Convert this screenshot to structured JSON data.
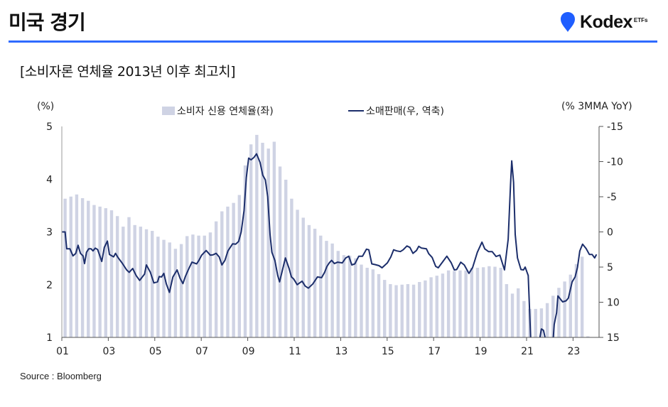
{
  "header": {
    "title": "미국 경기",
    "logo_text": "Kodex",
    "logo_sup": "ETFs",
    "accent": "#2f6bff"
  },
  "subtitle": "[소비자론 연체율 2013년 이후 최고치]",
  "footer": {
    "source": "Source : Bloomberg"
  },
  "chart_data": {
    "type": "bar+line",
    "title": "[소비자론 연체율 2013년 이후 최고치]",
    "left_axis": {
      "unit": "(%)",
      "range": [
        1,
        5
      ],
      "ticks": [
        "1",
        "2",
        "3",
        "4",
        "5"
      ]
    },
    "right_axis": {
      "unit": "(% 3MMA YoY)",
      "range": [
        -15,
        15
      ],
      "inverted": true,
      "ticks": [
        "-15",
        "-10",
        "-5",
        "0",
        "5",
        "10",
        "15"
      ]
    },
    "x_axis": {
      "range": [
        2001,
        2024.12
      ],
      "ticks": [
        "01",
        "03",
        "05",
        "07",
        "09",
        "11",
        "13",
        "15",
        "17",
        "19",
        "21",
        "23"
      ],
      "tick_years": [
        2001,
        2003,
        2005,
        2007,
        2009,
        2011,
        2013,
        2015,
        2017,
        2019,
        2021,
        2023
      ]
    },
    "legend": [
      {
        "label": "소비자 신용 연체율(좌)",
        "color": "#cfd3e4"
      },
      {
        "label": "소매판매(우, 역축)",
        "color": "#1c2e6b"
      }
    ],
    "bars": {
      "name": "소비자 신용 연체율(좌)",
      "start_year": 2001.14,
      "step_years": 0.25,
      "values": [
        3.63,
        3.67,
        3.71,
        3.64,
        3.59,
        3.51,
        3.48,
        3.45,
        3.41,
        3.3,
        3.1,
        3.28,
        3.13,
        3.1,
        3.05,
        3.02,
        2.91,
        2.85,
        2.8,
        2.68,
        2.77,
        2.92,
        2.95,
        2.93,
        2.93,
        2.99,
        3.2,
        3.39,
        3.48,
        3.55,
        3.7,
        4.26,
        4.66,
        4.84,
        4.69,
        4.58,
        4.71,
        4.24,
        3.99,
        3.63,
        3.42,
        3.27,
        3.13,
        3.06,
        2.93,
        2.83,
        2.78,
        2.64,
        2.56,
        2.55,
        2.5,
        2.38,
        2.32,
        2.29,
        2.2,
        2.09,
        2.01,
        1.99,
        2.0,
        2.01,
        2.0,
        2.05,
        2.08,
        2.14,
        2.17,
        2.21,
        2.27,
        2.26,
        2.27,
        2.27,
        2.32,
        2.32,
        2.33,
        2.35,
        2.34,
        2.32,
        2.01,
        1.83,
        1.93,
        1.69,
        1.54,
        1.54,
        1.55,
        1.65,
        1.79,
        1.94,
        2.06,
        2.19,
        2.39,
        2.53,
        1.02
      ]
    },
    "line": {
      "name": "소매판매(우, 역축)",
      "points": [
        [
          2001.0,
          0
        ],
        [
          2001.14,
          0
        ],
        [
          2001.21,
          2.4
        ],
        [
          2001.35,
          2.4
        ],
        [
          2001.48,
          3.4
        ],
        [
          2001.6,
          3.05
        ],
        [
          2001.7,
          1.9
        ],
        [
          2001.8,
          3.05
        ],
        [
          2001.91,
          3.4
        ],
        [
          2001.98,
          4.5
        ],
        [
          2002.06,
          2.9
        ],
        [
          2002.16,
          2.4
        ],
        [
          2002.26,
          2.4
        ],
        [
          2002.34,
          2.7
        ],
        [
          2002.44,
          2.3
        ],
        [
          2002.54,
          2.5
        ],
        [
          2002.72,
          4.2
        ],
        [
          2002.83,
          2.2
        ],
        [
          2002.96,
          1.3
        ],
        [
          2003.05,
          3.2
        ],
        [
          2003.23,
          3.55
        ],
        [
          2003.31,
          3.05
        ],
        [
          2003.42,
          3.65
        ],
        [
          2003.59,
          4.4
        ],
        [
          2003.79,
          5.4
        ],
        [
          2003.9,
          5.75
        ],
        [
          2004.05,
          5.2
        ],
        [
          2004.2,
          6.2
        ],
        [
          2004.35,
          6.9
        ],
        [
          2004.56,
          6.0
        ],
        [
          2004.64,
          4.7
        ],
        [
          2004.81,
          5.75
        ],
        [
          2004.96,
          7.25
        ],
        [
          2005.12,
          7.1
        ],
        [
          2005.19,
          6.35
        ],
        [
          2005.29,
          6.4
        ],
        [
          2005.39,
          5.9
        ],
        [
          2005.5,
          7.4
        ],
        [
          2005.63,
          8.6
        ],
        [
          2005.78,
          6.4
        ],
        [
          2005.96,
          5.4
        ],
        [
          2006.09,
          6.6
        ],
        [
          2006.21,
          7.35
        ],
        [
          2006.31,
          6.4
        ],
        [
          2006.44,
          5.4
        ],
        [
          2006.6,
          4.3
        ],
        [
          2006.8,
          4.55
        ],
        [
          2006.9,
          4.05
        ],
        [
          2007.02,
          3.3
        ],
        [
          2007.21,
          2.65
        ],
        [
          2007.39,
          3.3
        ],
        [
          2007.51,
          3.25
        ],
        [
          2007.64,
          3.05
        ],
        [
          2007.77,
          3.55
        ],
        [
          2007.89,
          4.7
        ],
        [
          2008.02,
          4.05
        ],
        [
          2008.15,
          2.7
        ],
        [
          2008.35,
          1.7
        ],
        [
          2008.48,
          1.75
        ],
        [
          2008.61,
          1.35
        ],
        [
          2008.72,
          0
        ],
        [
          2008.84,
          -3.0
        ],
        [
          2008.94,
          -7.7
        ],
        [
          2009.04,
          -10.5
        ],
        [
          2009.14,
          -10.25
        ],
        [
          2009.27,
          -10.6
        ],
        [
          2009.38,
          -11.1
        ],
        [
          2009.53,
          -9.9
        ],
        [
          2009.65,
          -8.05
        ],
        [
          2009.76,
          -7.4
        ],
        [
          2009.86,
          -5.0
        ],
        [
          2009.96,
          0.35
        ],
        [
          2010.04,
          2.9
        ],
        [
          2010.17,
          4.05
        ],
        [
          2010.29,
          6.2
        ],
        [
          2010.37,
          7.1
        ],
        [
          2010.47,
          5.75
        ],
        [
          2010.62,
          3.7
        ],
        [
          2010.78,
          5.2
        ],
        [
          2010.88,
          6.4
        ],
        [
          2010.98,
          6.7
        ],
        [
          2011.13,
          7.5
        ],
        [
          2011.34,
          7.0
        ],
        [
          2011.47,
          7.7
        ],
        [
          2011.61,
          8.0
        ],
        [
          2011.8,
          7.4
        ],
        [
          2012.0,
          6.4
        ],
        [
          2012.18,
          6.5
        ],
        [
          2012.31,
          5.75
        ],
        [
          2012.41,
          4.9
        ],
        [
          2012.51,
          4.4
        ],
        [
          2012.61,
          4.05
        ],
        [
          2012.73,
          4.5
        ],
        [
          2012.87,
          4.3
        ],
        [
          2013.07,
          4.4
        ],
        [
          2013.22,
          3.7
        ],
        [
          2013.35,
          3.45
        ],
        [
          2013.48,
          4.7
        ],
        [
          2013.61,
          4.55
        ],
        [
          2013.78,
          3.45
        ],
        [
          2013.94,
          3.45
        ],
        [
          2014.11,
          2.45
        ],
        [
          2014.21,
          2.55
        ],
        [
          2014.34,
          4.55
        ],
        [
          2014.48,
          4.65
        ],
        [
          2014.65,
          4.8
        ],
        [
          2014.78,
          5.1
        ],
        [
          2015.01,
          4.4
        ],
        [
          2015.16,
          3.55
        ],
        [
          2015.28,
          2.55
        ],
        [
          2015.41,
          2.7
        ],
        [
          2015.57,
          2.8
        ],
        [
          2015.69,
          2.55
        ],
        [
          2015.85,
          2.0
        ],
        [
          2015.98,
          2.2
        ],
        [
          2016.11,
          3.05
        ],
        [
          2016.26,
          2.65
        ],
        [
          2016.36,
          2.05
        ],
        [
          2016.48,
          2.3
        ],
        [
          2016.69,
          2.4
        ],
        [
          2016.79,
          3.1
        ],
        [
          2016.94,
          3.65
        ],
        [
          2017.09,
          4.9
        ],
        [
          2017.2,
          5.1
        ],
        [
          2017.4,
          4.2
        ],
        [
          2017.57,
          3.45
        ],
        [
          2017.76,
          4.4
        ],
        [
          2017.89,
          5.4
        ],
        [
          2017.99,
          5.35
        ],
        [
          2018.17,
          4.3
        ],
        [
          2018.32,
          4.7
        ],
        [
          2018.52,
          5.9
        ],
        [
          2018.68,
          5.05
        ],
        [
          2018.88,
          2.9
        ],
        [
          2019.08,
          1.45
        ],
        [
          2019.2,
          2.4
        ],
        [
          2019.36,
          2.8
        ],
        [
          2019.52,
          2.8
        ],
        [
          2019.69,
          3.5
        ],
        [
          2019.85,
          3.3
        ],
        [
          2020.05,
          5.4
        ],
        [
          2020.21,
          1.05
        ],
        [
          2020.31,
          -6.7
        ],
        [
          2020.36,
          -10.1
        ],
        [
          2020.44,
          -7.05
        ],
        [
          2020.51,
          0.35
        ],
        [
          2020.61,
          3.7
        ],
        [
          2020.76,
          5.35
        ],
        [
          2020.87,
          5.4
        ],
        [
          2020.94,
          5.0
        ],
        [
          2021.07,
          6.2
        ],
        [
          2021.18,
          15.5
        ],
        [
          2021.34,
          25
        ],
        [
          2021.52,
          16
        ],
        [
          2021.64,
          13.8
        ],
        [
          2021.73,
          14
        ],
        [
          2021.86,
          16
        ],
        [
          2021.98,
          25
        ],
        [
          2022.13,
          16
        ],
        [
          2022.19,
          13.15
        ],
        [
          2022.29,
          11.5
        ],
        [
          2022.35,
          9.1
        ],
        [
          2022.55,
          9.95
        ],
        [
          2022.7,
          9.8
        ],
        [
          2022.8,
          9.4
        ],
        [
          2022.96,
          7.1
        ],
        [
          2023.09,
          6.4
        ],
        [
          2023.19,
          5.05
        ],
        [
          2023.29,
          2.7
        ],
        [
          2023.41,
          1.75
        ],
        [
          2023.57,
          2.4
        ],
        [
          2023.7,
          3.2
        ],
        [
          2023.82,
          3.2
        ],
        [
          2023.93,
          3.7
        ],
        [
          2024.01,
          3.2
        ]
      ]
    }
  }
}
